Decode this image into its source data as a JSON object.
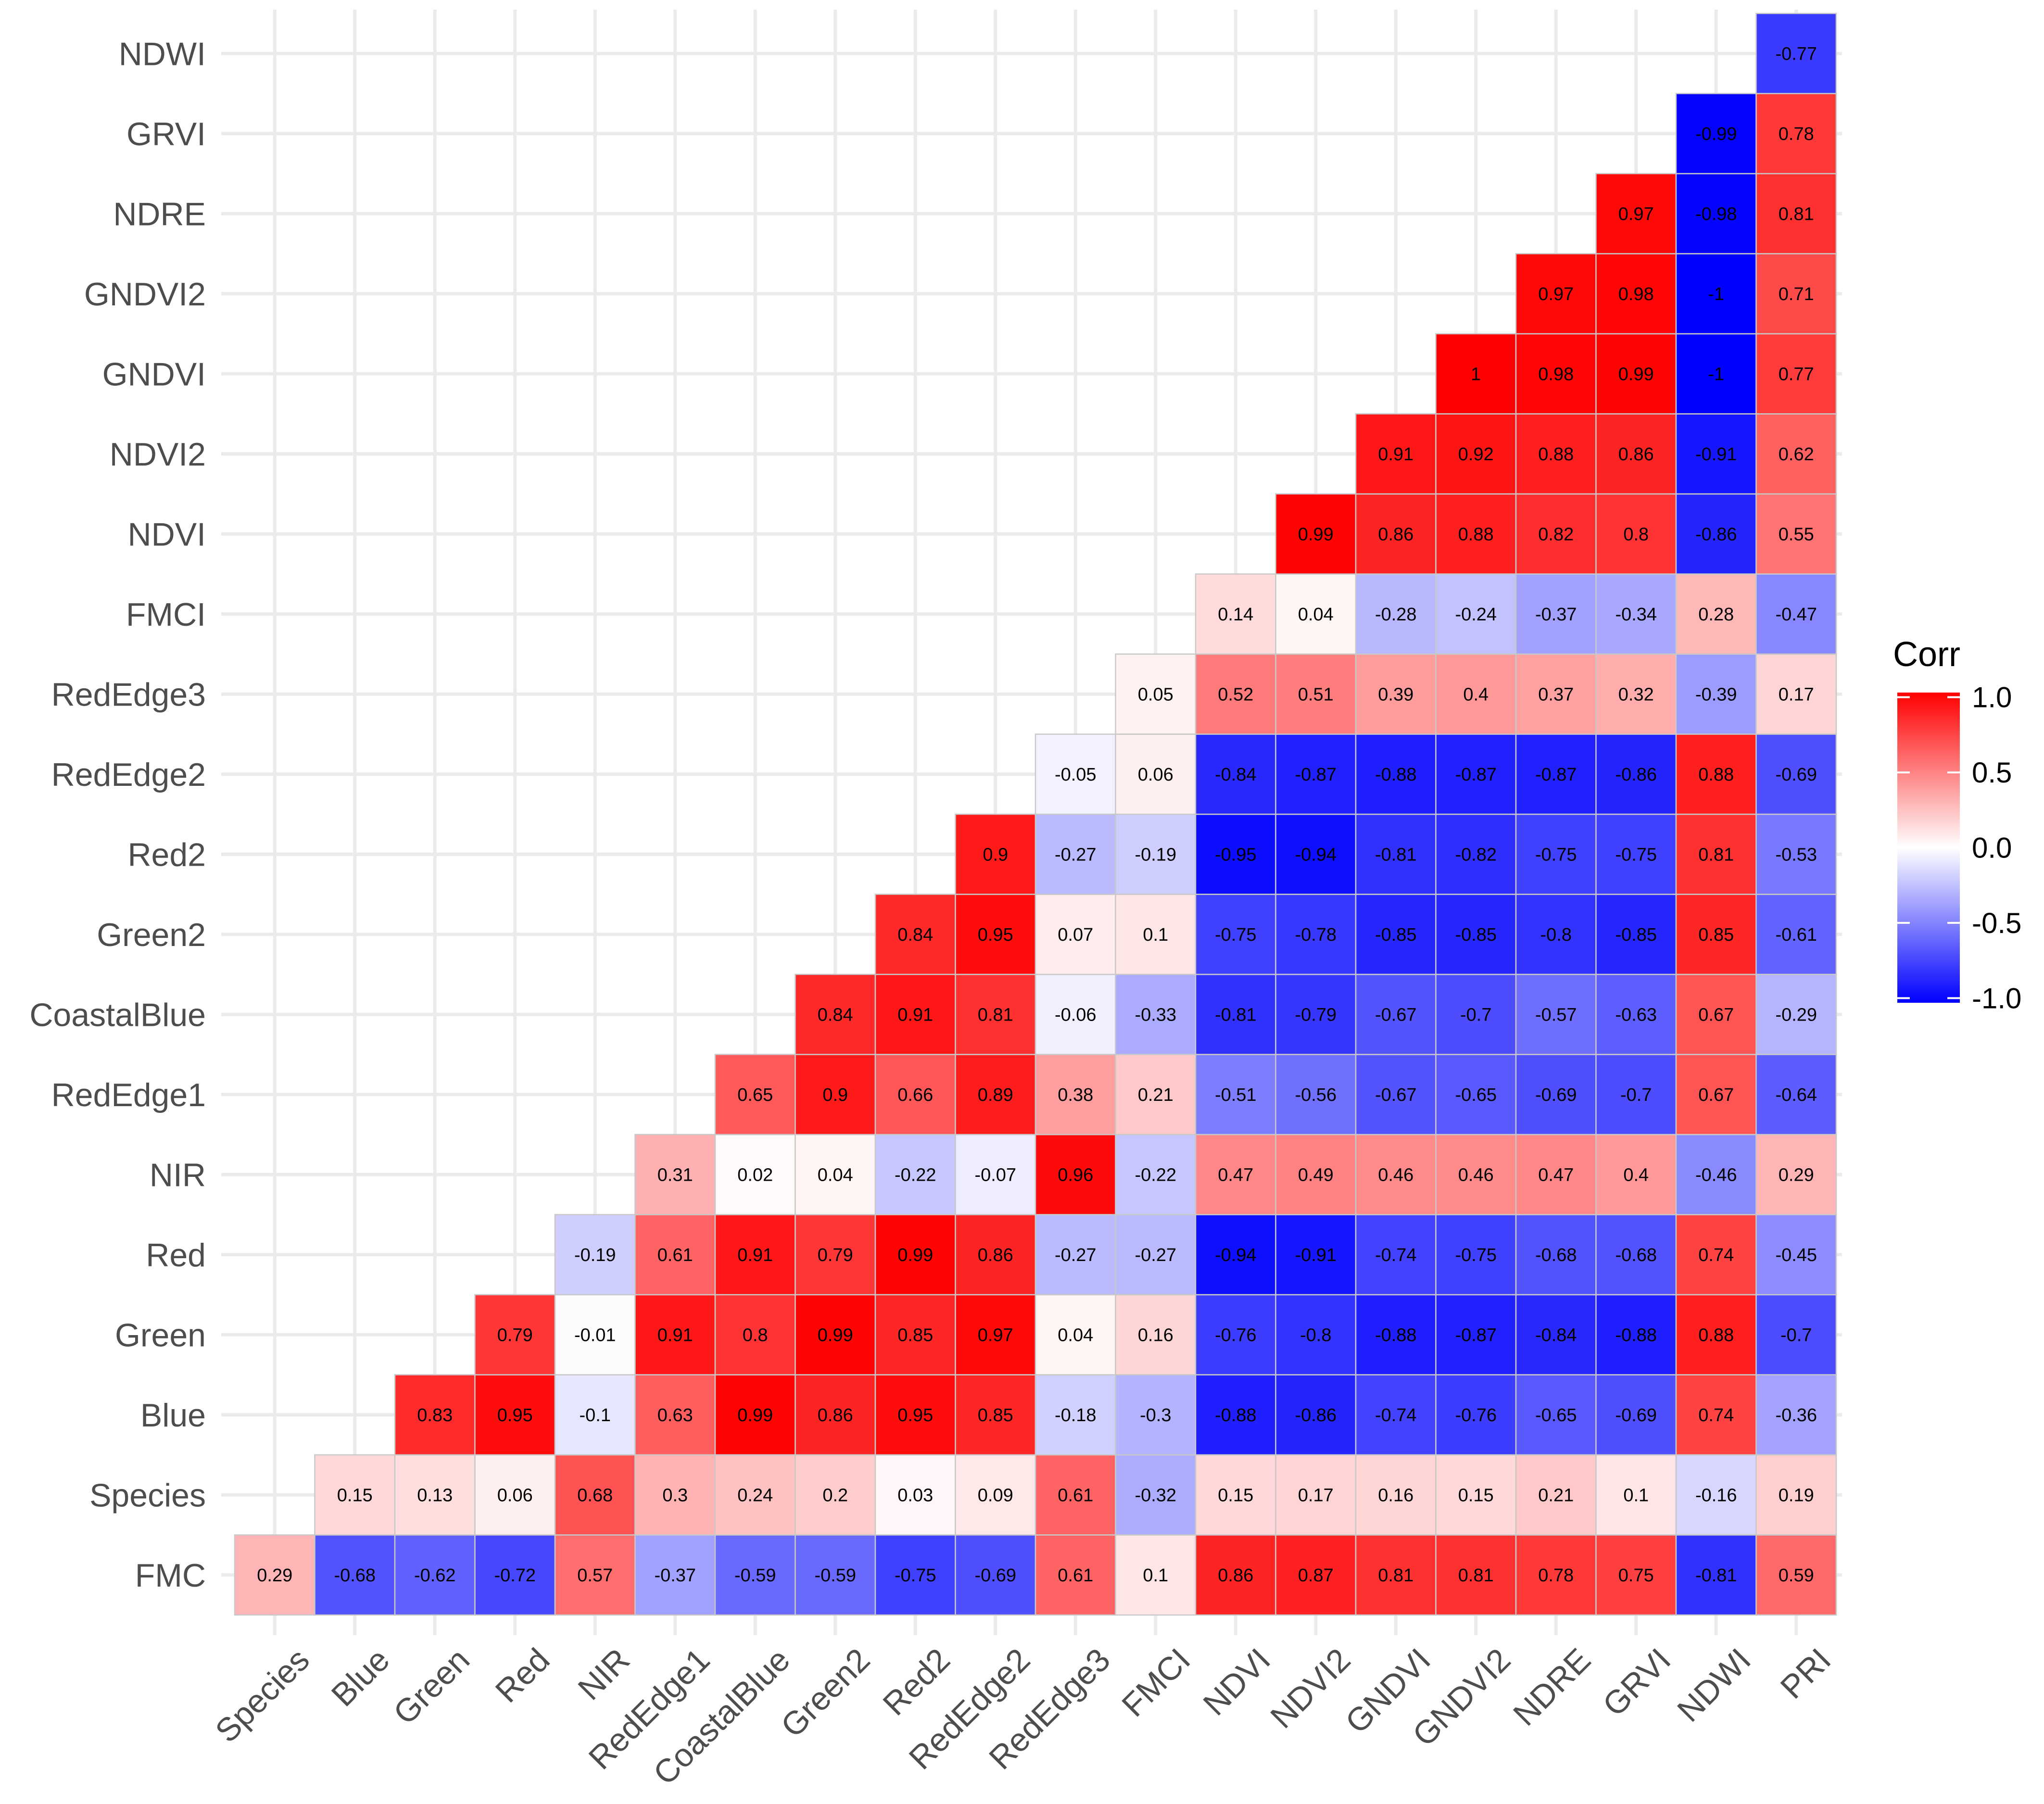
{
  "chart_data": {
    "type": "heatmap",
    "title": "",
    "xlabel": "",
    "ylabel": "",
    "x_labels": [
      "Species",
      "Blue",
      "Green",
      "Red",
      "NIR",
      "RedEdge1",
      "CoastalBlue",
      "Green2",
      "Red2",
      "RedEdge2",
      "RedEdge3",
      "FMCI",
      "NDVI",
      "NDVI2",
      "GNDVI",
      "GNDVI2",
      "NDRE",
      "GRVI",
      "NDWI",
      "PRI"
    ],
    "y_labels": [
      "FMC",
      "Species",
      "Blue",
      "Green",
      "Red",
      "NIR",
      "RedEdge1",
      "CoastalBlue",
      "Green2",
      "Red2",
      "RedEdge2",
      "RedEdge3",
      "FMCI",
      "NDVI",
      "NDVI2",
      "GNDVI",
      "GNDVI2",
      "NDRE",
      "GRVI",
      "NDWI"
    ],
    "values": [
      [
        0.29,
        -0.68,
        -0.62,
        -0.72,
        0.57,
        -0.37,
        -0.59,
        -0.59,
        -0.75,
        -0.69,
        0.61,
        0.1,
        0.86,
        0.87,
        0.81,
        0.81,
        0.78,
        0.75,
        -0.81,
        0.59
      ],
      [
        null,
        0.15,
        0.13,
        0.06,
        0.68,
        0.3,
        0.24,
        0.2,
        0.03,
        0.09,
        0.61,
        -0.32,
        0.15,
        0.17,
        0.16,
        0.15,
        0.21,
        0.1,
        -0.16,
        0.19
      ],
      [
        null,
        null,
        0.83,
        0.95,
        -0.1,
        0.63,
        0.99,
        0.86,
        0.95,
        0.85,
        -0.18,
        -0.3,
        -0.88,
        -0.86,
        -0.74,
        -0.76,
        -0.65,
        -0.69,
        0.74,
        -0.36
      ],
      [
        null,
        null,
        null,
        0.79,
        -0.01,
        0.91,
        0.8,
        0.99,
        0.85,
        0.97,
        0.04,
        0.16,
        -0.76,
        -0.8,
        -0.88,
        -0.87,
        -0.84,
        -0.88,
        0.88,
        -0.7
      ],
      [
        null,
        null,
        null,
        null,
        -0.19,
        0.61,
        0.91,
        0.79,
        0.99,
        0.86,
        -0.27,
        -0.27,
        -0.94,
        -0.91,
        -0.74,
        -0.75,
        -0.68,
        -0.68,
        0.74,
        -0.45
      ],
      [
        null,
        null,
        null,
        null,
        null,
        0.31,
        0.02,
        0.04,
        -0.22,
        -0.07,
        0.96,
        -0.22,
        0.47,
        0.49,
        0.46,
        0.46,
        0.47,
        0.4,
        -0.46,
        0.29
      ],
      [
        null,
        null,
        null,
        null,
        null,
        null,
        0.65,
        0.9,
        0.66,
        0.89,
        0.38,
        0.21,
        -0.51,
        -0.56,
        -0.67,
        -0.65,
        -0.69,
        -0.7,
        0.67,
        -0.64
      ],
      [
        null,
        null,
        null,
        null,
        null,
        null,
        null,
        0.84,
        0.91,
        0.81,
        -0.06,
        -0.33,
        -0.81,
        -0.79,
        -0.67,
        -0.7,
        -0.57,
        -0.63,
        0.67,
        -0.29
      ],
      [
        null,
        null,
        null,
        null,
        null,
        null,
        null,
        null,
        0.84,
        0.95,
        0.07,
        0.1,
        -0.75,
        -0.78,
        -0.85,
        -0.85,
        -0.8,
        -0.85,
        0.85,
        -0.61
      ],
      [
        null,
        null,
        null,
        null,
        null,
        null,
        null,
        null,
        null,
        0.9,
        -0.27,
        -0.19,
        -0.95,
        -0.94,
        -0.81,
        -0.82,
        -0.75,
        -0.75,
        0.81,
        -0.53
      ],
      [
        null,
        null,
        null,
        null,
        null,
        null,
        null,
        null,
        null,
        null,
        -0.05,
        0.06,
        -0.84,
        -0.87,
        -0.88,
        -0.87,
        -0.87,
        -0.86,
        0.88,
        -0.69
      ],
      [
        null,
        null,
        null,
        null,
        null,
        null,
        null,
        null,
        null,
        null,
        null,
        0.05,
        0.52,
        0.51,
        0.39,
        0.4,
        0.37,
        0.32,
        -0.39,
        0.17
      ],
      [
        null,
        null,
        null,
        null,
        null,
        null,
        null,
        null,
        null,
        null,
        null,
        null,
        0.14,
        0.04,
        -0.28,
        -0.24,
        -0.37,
        -0.34,
        0.28,
        -0.47
      ],
      [
        null,
        null,
        null,
        null,
        null,
        null,
        null,
        null,
        null,
        null,
        null,
        null,
        null,
        0.99,
        0.86,
        0.88,
        0.82,
        0.8,
        -0.86,
        0.55
      ],
      [
        null,
        null,
        null,
        null,
        null,
        null,
        null,
        null,
        null,
        null,
        null,
        null,
        null,
        null,
        0.91,
        0.92,
        0.88,
        0.86,
        -0.91,
        0.62
      ],
      [
        null,
        null,
        null,
        null,
        null,
        null,
        null,
        null,
        null,
        null,
        null,
        null,
        null,
        null,
        null,
        1,
        0.98,
        0.99,
        -1,
        0.77
      ],
      [
        null,
        null,
        null,
        null,
        null,
        null,
        null,
        null,
        null,
        null,
        null,
        null,
        null,
        null,
        null,
        null,
        0.97,
        0.98,
        -1,
        0.71
      ],
      [
        null,
        null,
        null,
        null,
        null,
        null,
        null,
        null,
        null,
        null,
        null,
        null,
        null,
        null,
        null,
        null,
        null,
        0.97,
        -0.98,
        0.81
      ],
      [
        null,
        null,
        null,
        null,
        null,
        null,
        null,
        null,
        null,
        null,
        null,
        null,
        null,
        null,
        null,
        null,
        null,
        null,
        -0.99,
        0.78
      ],
      [
        null,
        null,
        null,
        null,
        null,
        null,
        null,
        null,
        null,
        null,
        null,
        null,
        null,
        null,
        null,
        null,
        null,
        null,
        null,
        -0.77
      ]
    ],
    "color_scale": {
      "low": "#0000ff",
      "mid": "#ffffff",
      "high": "#ff0000",
      "range": [
        -1,
        1
      ]
    },
    "legend": {
      "title": "Corr",
      "placement": "right",
      "ticks": [
        "1.0",
        "0.5",
        "0.0",
        "-0.5",
        "-1.0"
      ]
    },
    "grid": true,
    "colors": {
      "grid": "#ebebeb",
      "cell_border": "#c8c8c8",
      "tick_text": "#4d4d4d"
    }
  }
}
